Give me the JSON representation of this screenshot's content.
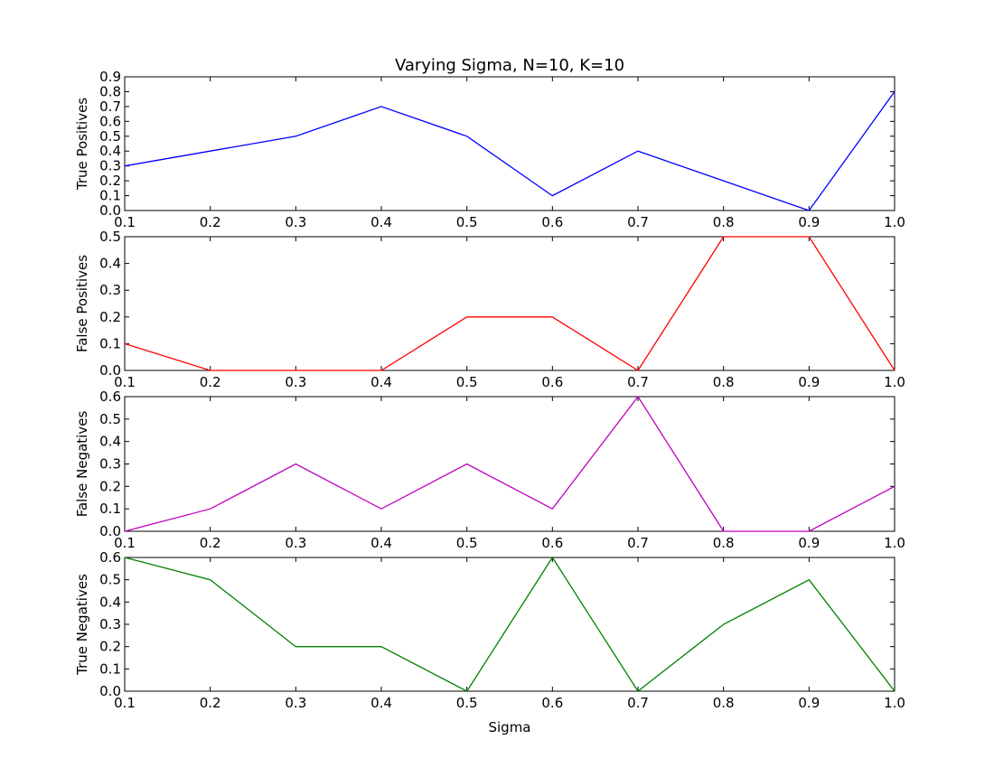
{
  "chart_data": {
    "type": "line",
    "title": "Varying Sigma, N=10, K=10",
    "xlabel": "Sigma",
    "x": [
      0.1,
      0.2,
      0.3,
      0.4,
      0.5,
      0.6,
      0.7,
      0.8,
      0.9,
      1.0
    ],
    "xlim": [
      0.1,
      1.0
    ],
    "xticks": [
      "0.1",
      "0.2",
      "0.3",
      "0.4",
      "0.5",
      "0.6",
      "0.7",
      "0.8",
      "0.9",
      "1.0"
    ],
    "legend": "none",
    "grid": false,
    "subplots": [
      {
        "ylabel": "True Positives",
        "color": "#0000ff",
        "ylim": [
          0,
          0.9
        ],
        "yticks": [
          "0.0",
          "0.1",
          "0.2",
          "0.3",
          "0.4",
          "0.5",
          "0.6",
          "0.7",
          "0.8",
          "0.9"
        ],
        "values": [
          0.3,
          0.4,
          0.5,
          0.7,
          0.5,
          0.1,
          0.4,
          0.2,
          0.0,
          0.8
        ]
      },
      {
        "ylabel": "False Positives",
        "color": "#ff0000",
        "ylim": [
          0,
          0.5
        ],
        "yticks": [
          "0.0",
          "0.1",
          "0.2",
          "0.3",
          "0.4",
          "0.5"
        ],
        "values": [
          0.1,
          0.0,
          0.0,
          0.0,
          0.2,
          0.2,
          0.0,
          0.5,
          0.5,
          0.0
        ]
      },
      {
        "ylabel": "False Negatives",
        "color": "#bf00bf",
        "ylim": [
          0,
          0.6
        ],
        "yticks": [
          "0.0",
          "0.1",
          "0.2",
          "0.3",
          "0.4",
          "0.5",
          "0.6"
        ],
        "values": [
          0.0,
          0.1,
          0.3,
          0.1,
          0.3,
          0.1,
          0.6,
          0.0,
          0.0,
          0.2
        ]
      },
      {
        "ylabel": "True Negatives",
        "color": "#008000",
        "ylim": [
          0,
          0.6
        ],
        "yticks": [
          "0.0",
          "0.1",
          "0.2",
          "0.3",
          "0.4",
          "0.5",
          "0.6"
        ],
        "values": [
          0.6,
          0.5,
          0.2,
          0.2,
          0.0,
          0.6,
          0.0,
          0.3,
          0.5,
          0.0
        ]
      }
    ]
  }
}
